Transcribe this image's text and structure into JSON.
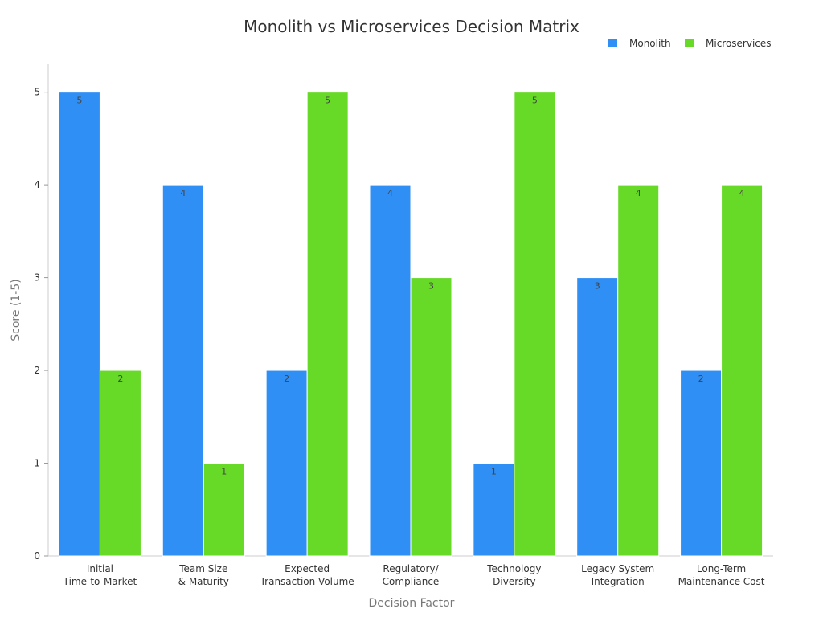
{
  "chart_data": {
    "type": "bar",
    "title": "Monolith vs Microservices Decision Matrix",
    "xlabel": "Decision Factor",
    "ylabel": "Score (1-5)",
    "ylim": [
      0,
      5.3
    ],
    "yticks": [
      0,
      1,
      2,
      3,
      4,
      5
    ],
    "grid": false,
    "legend_position": "top-right",
    "categories": [
      [
        "Initial",
        "Time-to-Market"
      ],
      [
        "Team Size",
        "& Maturity"
      ],
      [
        "Expected",
        "Transaction Volume"
      ],
      [
        "Regulatory/",
        "Compliance"
      ],
      [
        "Technology",
        "Diversity"
      ],
      [
        "Legacy System",
        "Integration"
      ],
      [
        "Long-Term",
        "Maintenance Cost"
      ]
    ],
    "series": [
      {
        "name": "Monolith",
        "color": "#2f8ff5",
        "values": [
          5,
          4,
          2,
          4,
          1,
          3,
          2
        ]
      },
      {
        "name": "Microservices",
        "color": "#66da26",
        "values": [
          2,
          1,
          5,
          3,
          5,
          4,
          4
        ]
      }
    ]
  }
}
